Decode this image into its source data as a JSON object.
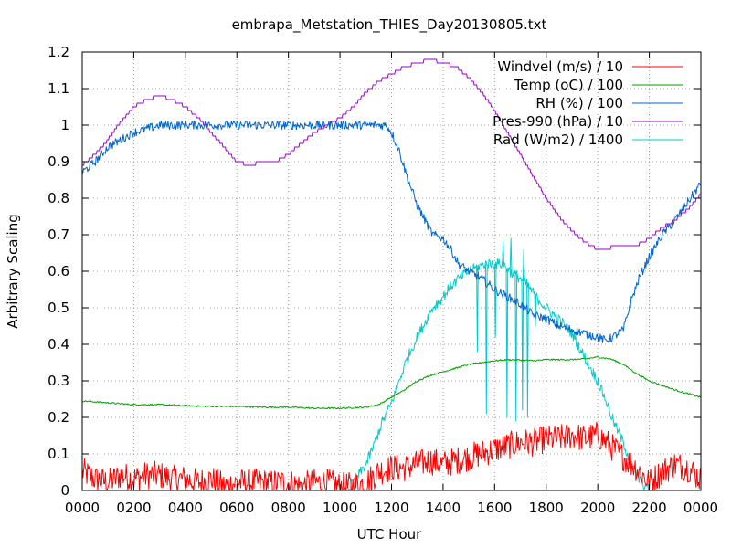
{
  "chart_data": {
    "type": "line",
    "title": "embrapa_Metstation_THIES_Day20130805.txt",
    "xlabel": "UTC Hour",
    "ylabel": "Arbitrary Scaling",
    "xlim": [
      0,
      24
    ],
    "ylim": [
      0,
      1.2
    ],
    "x_tick_values": [
      0,
      2,
      4,
      6,
      8,
      10,
      12,
      14,
      16,
      18,
      20,
      22,
      24
    ],
    "x_tick_labels": [
      "0000",
      "0200",
      "0400",
      "0600",
      "0800",
      "1000",
      "1200",
      "1400",
      "1600",
      "1800",
      "2000",
      "2200",
      "0000"
    ],
    "y_tick_values": [
      0,
      0.1,
      0.2,
      0.3,
      0.4,
      0.5,
      0.6,
      0.7,
      0.8,
      0.9,
      1.0,
      1.1,
      1.2
    ],
    "y_tick_labels": [
      "0",
      "0.1",
      "0.2",
      "0.3",
      "0.4",
      "0.5",
      "0.6",
      "0.7",
      "0.8",
      "0.9",
      "1",
      "1.1",
      "1.2"
    ],
    "grid": true,
    "legend_position": "top-right",
    "series": [
      {
        "name": "Windvel (m/s) / 10",
        "color": "#ff0000",
        "x": [
          0,
          0.5,
          1,
          1.5,
          2,
          2.5,
          3,
          3.5,
          4,
          4.5,
          5,
          5.5,
          6,
          6.5,
          7,
          7.5,
          8,
          8.5,
          9,
          9.5,
          10,
          10.5,
          11,
          11.5,
          12,
          12.5,
          13,
          13.5,
          14,
          14.5,
          15,
          15.5,
          16,
          16.5,
          17,
          17.5,
          18,
          18.5,
          19,
          19.5,
          20,
          20.5,
          21,
          21.5,
          22,
          22.5,
          23,
          23.5,
          24
        ],
        "y": [
          0.04,
          0.02,
          0.01,
          0.03,
          0.02,
          0.03,
          0.03,
          0.02,
          0.02,
          0.01,
          0.02,
          0.0,
          0.01,
          0.01,
          0.01,
          0.01,
          0.01,
          0.0,
          0.01,
          0.01,
          0.0,
          0.0,
          0.01,
          0.04,
          0.05,
          0.05,
          0.06,
          0.07,
          0.06,
          0.07,
          0.08,
          0.09,
          0.1,
          0.11,
          0.12,
          0.12,
          0.13,
          0.13,
          0.14,
          0.13,
          0.14,
          0.11,
          0.08,
          0.05,
          0.01,
          0.04,
          0.06,
          0.05,
          0.02
        ],
        "noise": 0.035
      },
      {
        "name": "Temp (oC) / 100",
        "color": "#00a000",
        "x": [
          0,
          1,
          2,
          3,
          4,
          5,
          6,
          7,
          8,
          9,
          10,
          11,
          11.5,
          12,
          12.5,
          13,
          13.5,
          14,
          14.5,
          15,
          15.5,
          16,
          16.5,
          17,
          17.5,
          18,
          19,
          19.5,
          20,
          20.5,
          21,
          21.5,
          22,
          23,
          24
        ],
        "y": [
          0.245,
          0.24,
          0.235,
          0.235,
          0.232,
          0.23,
          0.23,
          0.228,
          0.228,
          0.225,
          0.225,
          0.228,
          0.235,
          0.255,
          0.275,
          0.3,
          0.315,
          0.325,
          0.335,
          0.345,
          0.35,
          0.355,
          0.358,
          0.357,
          0.355,
          0.358,
          0.358,
          0.36,
          0.365,
          0.36,
          0.345,
          0.32,
          0.3,
          0.275,
          0.255
        ],
        "noise": 0.002
      },
      {
        "name": "RH (%) / 100",
        "color": "#0066cc",
        "x": [
          0,
          0.5,
          1,
          1.5,
          2,
          2.5,
          3,
          4,
          5,
          6,
          7,
          8,
          9,
          10,
          11,
          11.8,
          12,
          12.3,
          12.6,
          13,
          13.3,
          13.6,
          14,
          14.3,
          14.6,
          15,
          15.5,
          16,
          16.5,
          17,
          17.5,
          18,
          18.5,
          19,
          19.5,
          20,
          20.3,
          20.6,
          21,
          21.3,
          21.6,
          22,
          22.5,
          23,
          23.5,
          24
        ],
        "y": [
          0.87,
          0.9,
          0.94,
          0.96,
          0.98,
          0.99,
          1.0,
          1.0,
          1.0,
          1.0,
          1.0,
          1.0,
          1.0,
          1.0,
          1.0,
          1.0,
          0.98,
          0.93,
          0.86,
          0.78,
          0.74,
          0.7,
          0.69,
          0.66,
          0.62,
          0.6,
          0.58,
          0.55,
          0.53,
          0.51,
          0.48,
          0.47,
          0.45,
          0.44,
          0.43,
          0.42,
          0.41,
          0.42,
          0.44,
          0.52,
          0.58,
          0.64,
          0.7,
          0.74,
          0.79,
          0.84
        ],
        "noise": 0.012
      },
      {
        "name": "Pres-990 (hPa) / 10",
        "color": "#9900cc",
        "x": [
          0,
          0.5,
          1,
          1.5,
          2,
          2.5,
          3,
          3.5,
          4,
          4.5,
          5,
          5.5,
          6,
          6.5,
          7,
          7.5,
          8,
          8.5,
          9,
          9.5,
          10,
          10.5,
          11,
          11.5,
          12,
          12.5,
          13,
          13.5,
          14,
          14.5,
          15,
          15.5,
          16,
          16.5,
          17,
          17.5,
          18,
          18.5,
          19,
          19.5,
          20,
          20.5,
          21,
          21.5,
          22,
          22.5,
          23,
          23.5,
          24
        ],
        "y": [
          0.89,
          0.92,
          0.96,
          1.01,
          1.05,
          1.07,
          1.08,
          1.07,
          1.05,
          1.02,
          0.98,
          0.94,
          0.9,
          0.89,
          0.9,
          0.9,
          0.92,
          0.95,
          0.98,
          1.0,
          1.02,
          1.05,
          1.09,
          1.12,
          1.14,
          1.16,
          1.17,
          1.18,
          1.17,
          1.16,
          1.13,
          1.09,
          1.04,
          0.98,
          0.92,
          0.86,
          0.8,
          0.75,
          0.71,
          0.68,
          0.66,
          0.665,
          0.67,
          0.67,
          0.69,
          0.72,
          0.74,
          0.77,
          0.81
        ]
      },
      {
        "name": "Rad (W/m2) / 1400",
        "color": "#00cccc",
        "x": [
          0,
          1,
          2,
          3,
          4,
          5,
          6,
          7,
          8,
          9,
          10,
          10.3,
          10.6,
          11,
          11.3,
          11.6,
          12,
          12.3,
          12.6,
          13,
          13.3,
          13.6,
          14,
          14.3,
          14.6,
          15,
          15.3,
          15.6,
          16,
          16.3,
          16.6,
          17,
          17.3,
          17.6,
          18,
          18.3,
          18.6,
          19,
          19.3,
          19.6,
          20,
          20.3,
          20.6,
          21,
          21.3,
          21.6,
          22,
          22.3,
          23,
          24
        ],
        "y": [
          0,
          0,
          0,
          0,
          0,
          0,
          0,
          0,
          0,
          0,
          0,
          0.0,
          0.03,
          0.07,
          0.12,
          0.18,
          0.24,
          0.3,
          0.36,
          0.42,
          0.46,
          0.5,
          0.53,
          0.56,
          0.58,
          0.6,
          0.61,
          0.62,
          0.62,
          0.62,
          0.6,
          0.58,
          0.56,
          0.53,
          0.5,
          0.48,
          0.46,
          0.43,
          0.39,
          0.35,
          0.3,
          0.25,
          0.19,
          0.13,
          0.07,
          0.03,
          0.0,
          0,
          0,
          0
        ],
        "noise": 0.015,
        "dips": [
          {
            "x": 15.3,
            "y": 0.38
          },
          {
            "x": 15.65,
            "y": 0.21
          },
          {
            "x": 16.0,
            "y": 0.42
          },
          {
            "x": 16.45,
            "y": 0.2
          },
          {
            "x": 16.8,
            "y": 0.19
          },
          {
            "x": 17.05,
            "y": 0.22
          },
          {
            "x": 17.25,
            "y": 0.2
          },
          {
            "x": 17.55,
            "y": 0.45
          }
        ],
        "spikes": [
          {
            "x": 16.3,
            "y": 0.68
          },
          {
            "x": 16.6,
            "y": 0.69
          },
          {
            "x": 17.1,
            "y": 0.66
          }
        ]
      }
    ]
  }
}
